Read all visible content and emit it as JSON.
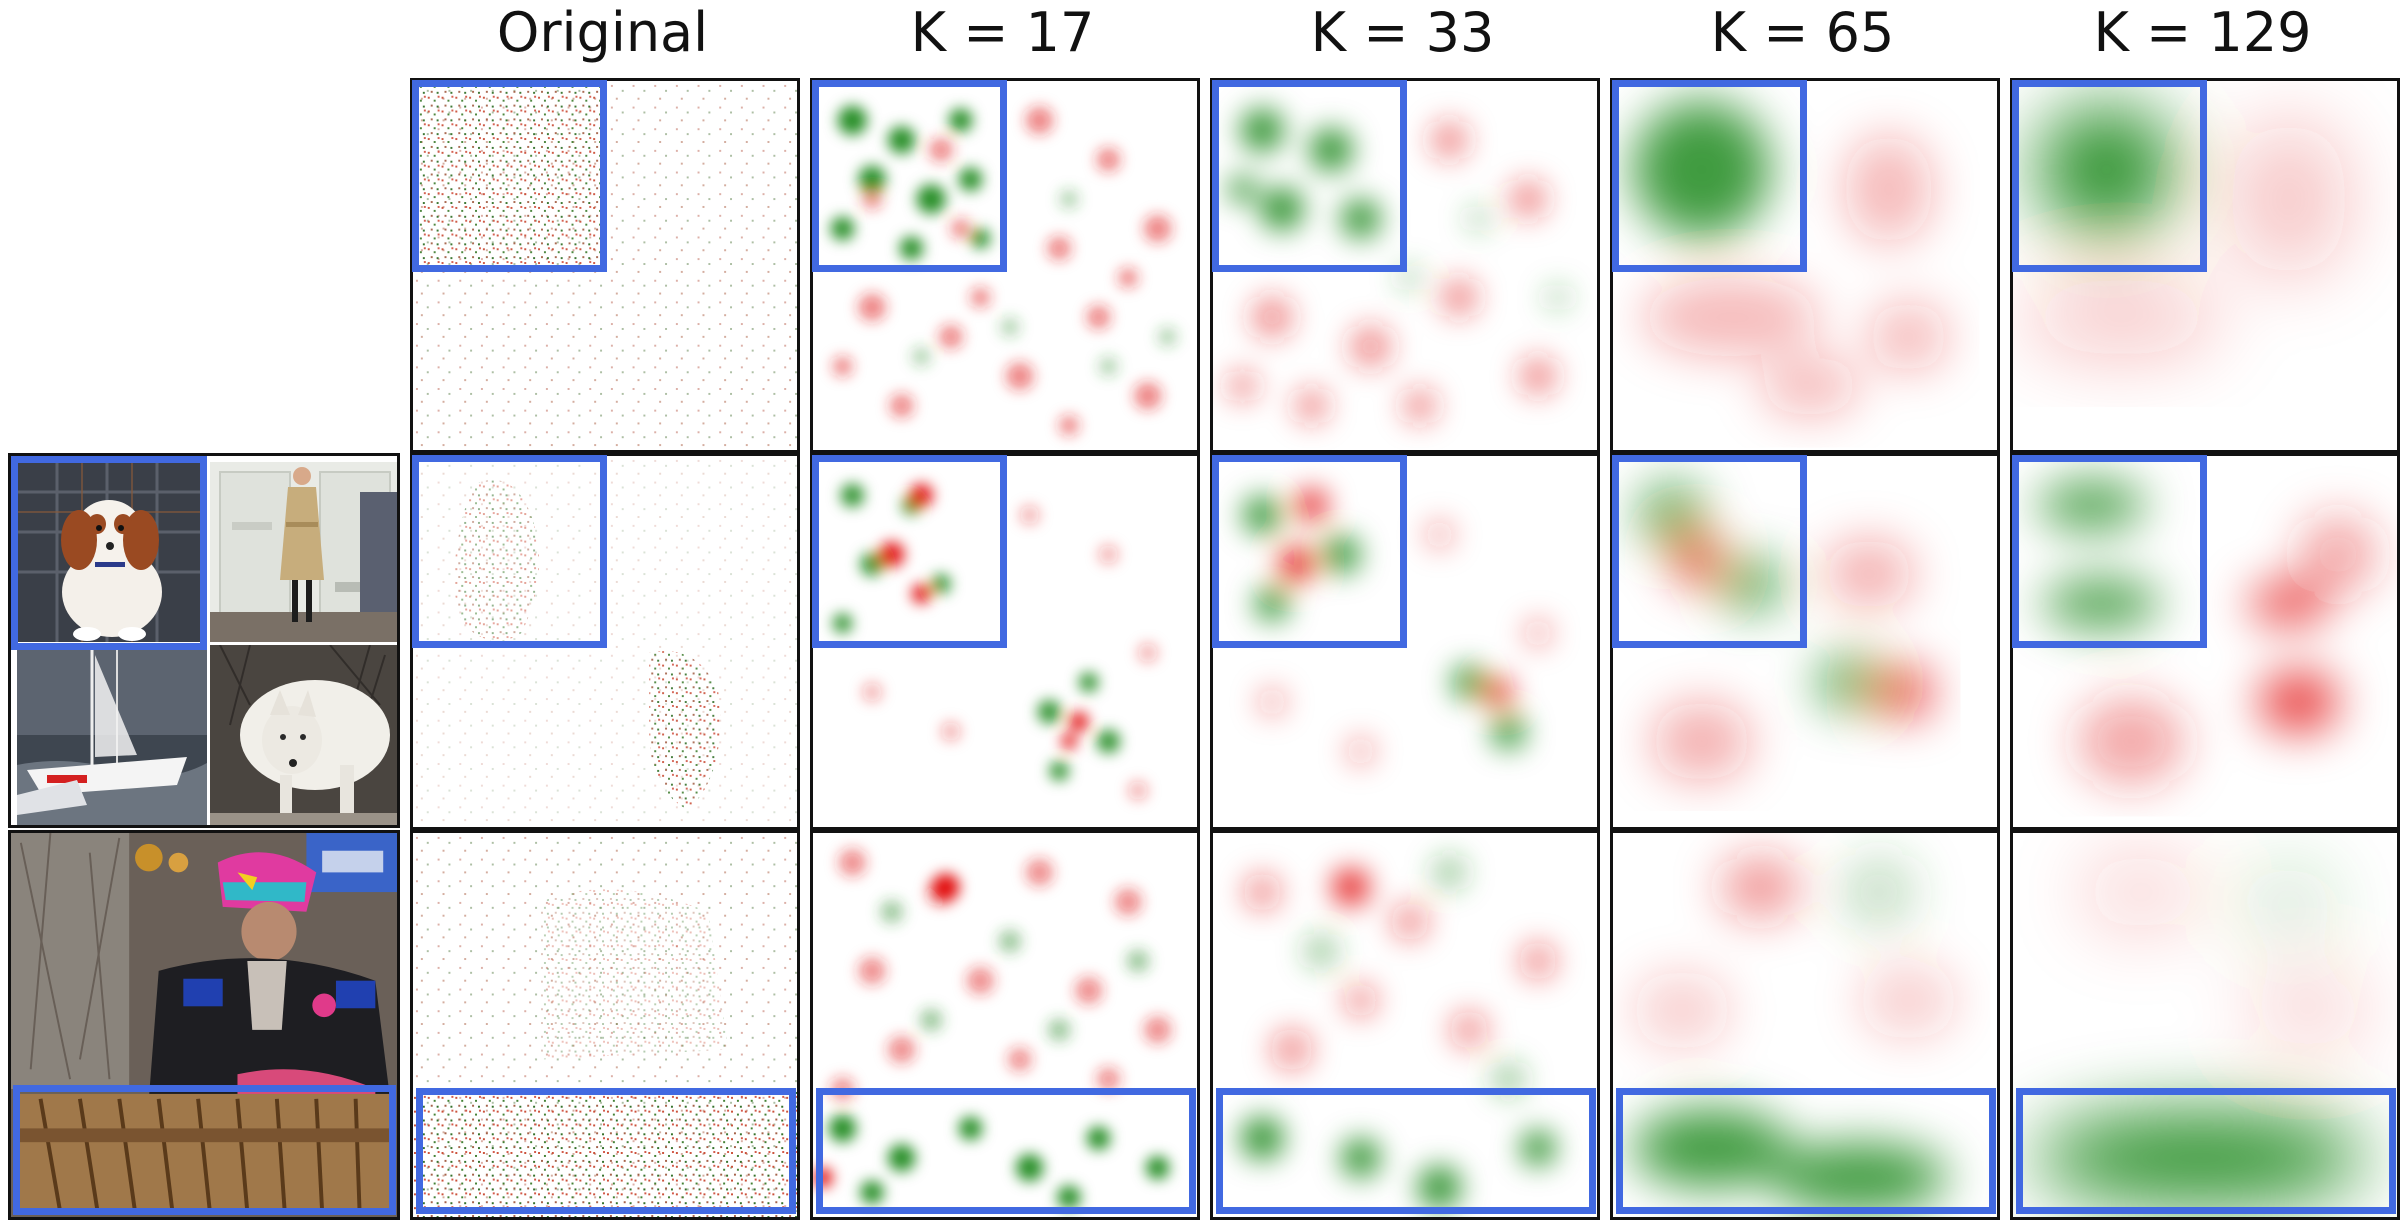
{
  "figure": {
    "column_titles": [
      "Original",
      "K = 17",
      "K = 33",
      "K = 65",
      "K = 129"
    ],
    "row_highlights": [
      "top-left",
      "top-left",
      "bottom-strip"
    ],
    "colors": {
      "positive": "#006400",
      "negative": "#e01010",
      "highlight_box": "#4169e1",
      "panel_border": "#111111"
    },
    "input_images": [
      "dog-photo",
      "person-in-trench-coat-photo",
      "sailboat-photo",
      "white-wolf-photo",
      "man-playing-marimba-photo"
    ]
  }
}
